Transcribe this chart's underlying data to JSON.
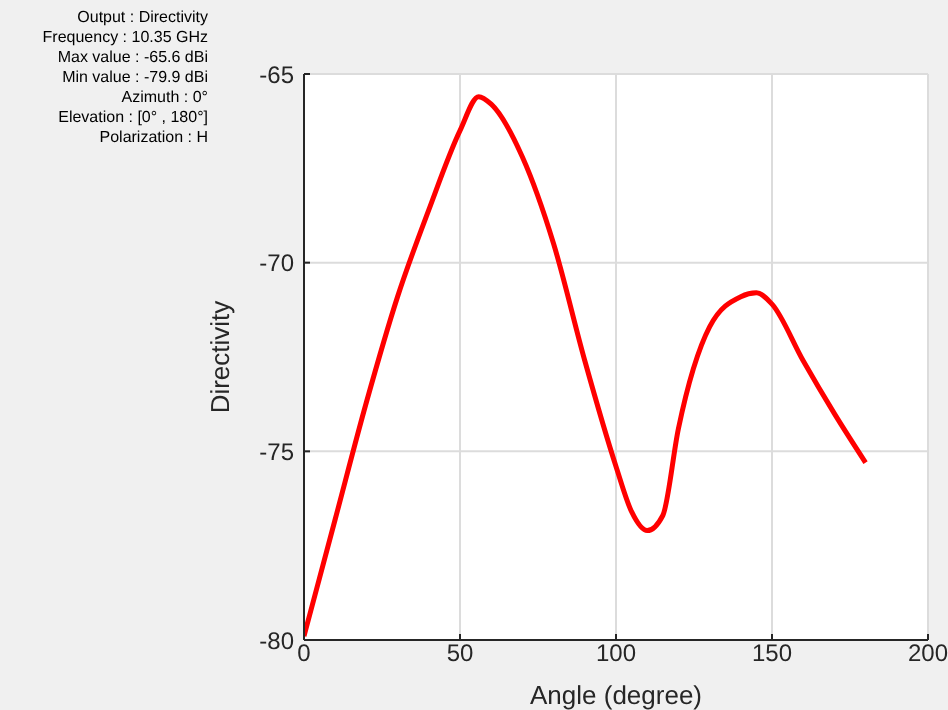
{
  "chart_data": {
    "type": "line",
    "xlabel": "Angle (degree)",
    "ylabel": "Directivity",
    "annotations": [
      "Output : Directivity",
      "Frequency : 10.35 GHz",
      "Max value : -65.6 dBi",
      "Min value : -79.9 dBi",
      "Azimuth : 0°",
      "Elevation : [0° , 180°]",
      "Polarization : H"
    ],
    "series": [
      {
        "color": "#ff0000",
        "x": [
          0,
          10,
          20,
          30,
          40,
          50,
          56,
          60,
          70,
          80,
          90,
          100,
          105,
          110,
          115,
          120,
          130,
          140,
          145,
          150,
          160,
          170,
          180
        ],
        "values": [
          -79.9,
          -76.8,
          -73.7,
          -70.9,
          -68.6,
          -66.5,
          -65.6,
          -65.8,
          -67.2,
          -69.5,
          -72.6,
          -75.4,
          -76.6,
          -77.1,
          -76.7,
          -74.4,
          -71.7,
          -70.9,
          -70.8,
          -71.1,
          -72.6,
          -74.0,
          -75.3
        ]
      }
    ],
    "xlim": [
      0,
      200
    ],
    "xticks": [
      0,
      50,
      100,
      150,
      200
    ],
    "ylim": [
      -80,
      -65
    ],
    "yticks": [
      -80,
      -75,
      -70,
      -65
    ],
    "grid": true,
    "legend": false,
    "marker": "none",
    "line_style": "solid"
  }
}
